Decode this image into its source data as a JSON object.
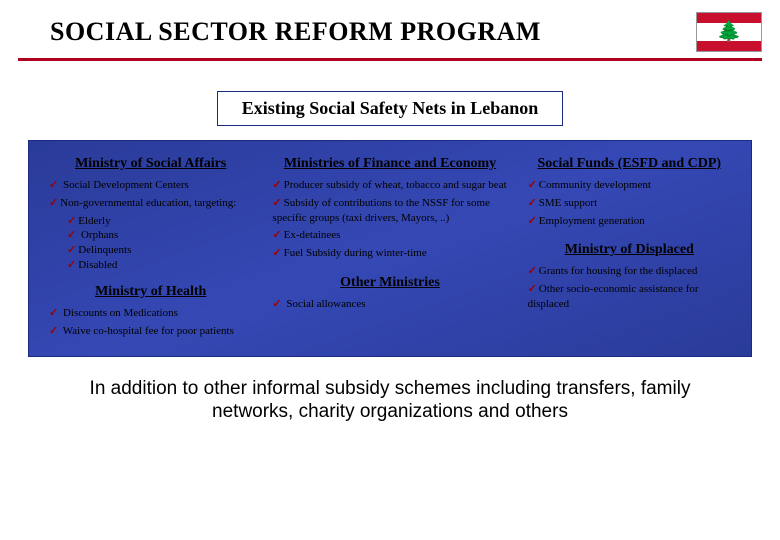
{
  "title": "SOCIAL SECTOR REFORM PROGRAM",
  "subtitle": "Existing Social Safety Nets in Lebanon",
  "colors": {
    "accent_red": "#b00020",
    "panel_blue": "#3548b5",
    "check_color": "#9b0000"
  },
  "flag": {
    "stripe": "#c8102e",
    "tree": "#006233"
  },
  "col1": {
    "h1": "Ministry of Social Affairs",
    "i1": " Social Development Centers",
    "i2": "Non-governmental education, targeting:",
    "sub": [
      "Elderly",
      " Orphans",
      "Delinquents",
      "Disabled"
    ],
    "h2": "Ministry of Health",
    "j1": " Discounts on Medications",
    "j2": " Waive co-hospital fee for poor patients"
  },
  "col2": {
    "h1": "Ministries of Finance and Economy",
    "i1": "Producer subsidy of wheat, tobacco and sugar beat",
    "i2": "Subsidy of contributions to the NSSF for some specific groups (taxi drivers, Mayors, ..)",
    "i3": "Ex-detainees",
    "i4": "Fuel Subsidy during winter-time",
    "h2": "Other Ministries",
    "j1": " Social allowances"
  },
  "col3": {
    "h1": "Social Funds (ESFD and CDP)",
    "i1": "Community development",
    "i2": "SME support",
    "i3": "Employment generation",
    "h2": "Ministry of Displaced",
    "j1": "Grants for housing for the displaced",
    "j2": "Other socio-economic assistance for displaced"
  },
  "footer": "In addition to other informal subsidy schemes including transfers, family networks, charity organizations and others"
}
